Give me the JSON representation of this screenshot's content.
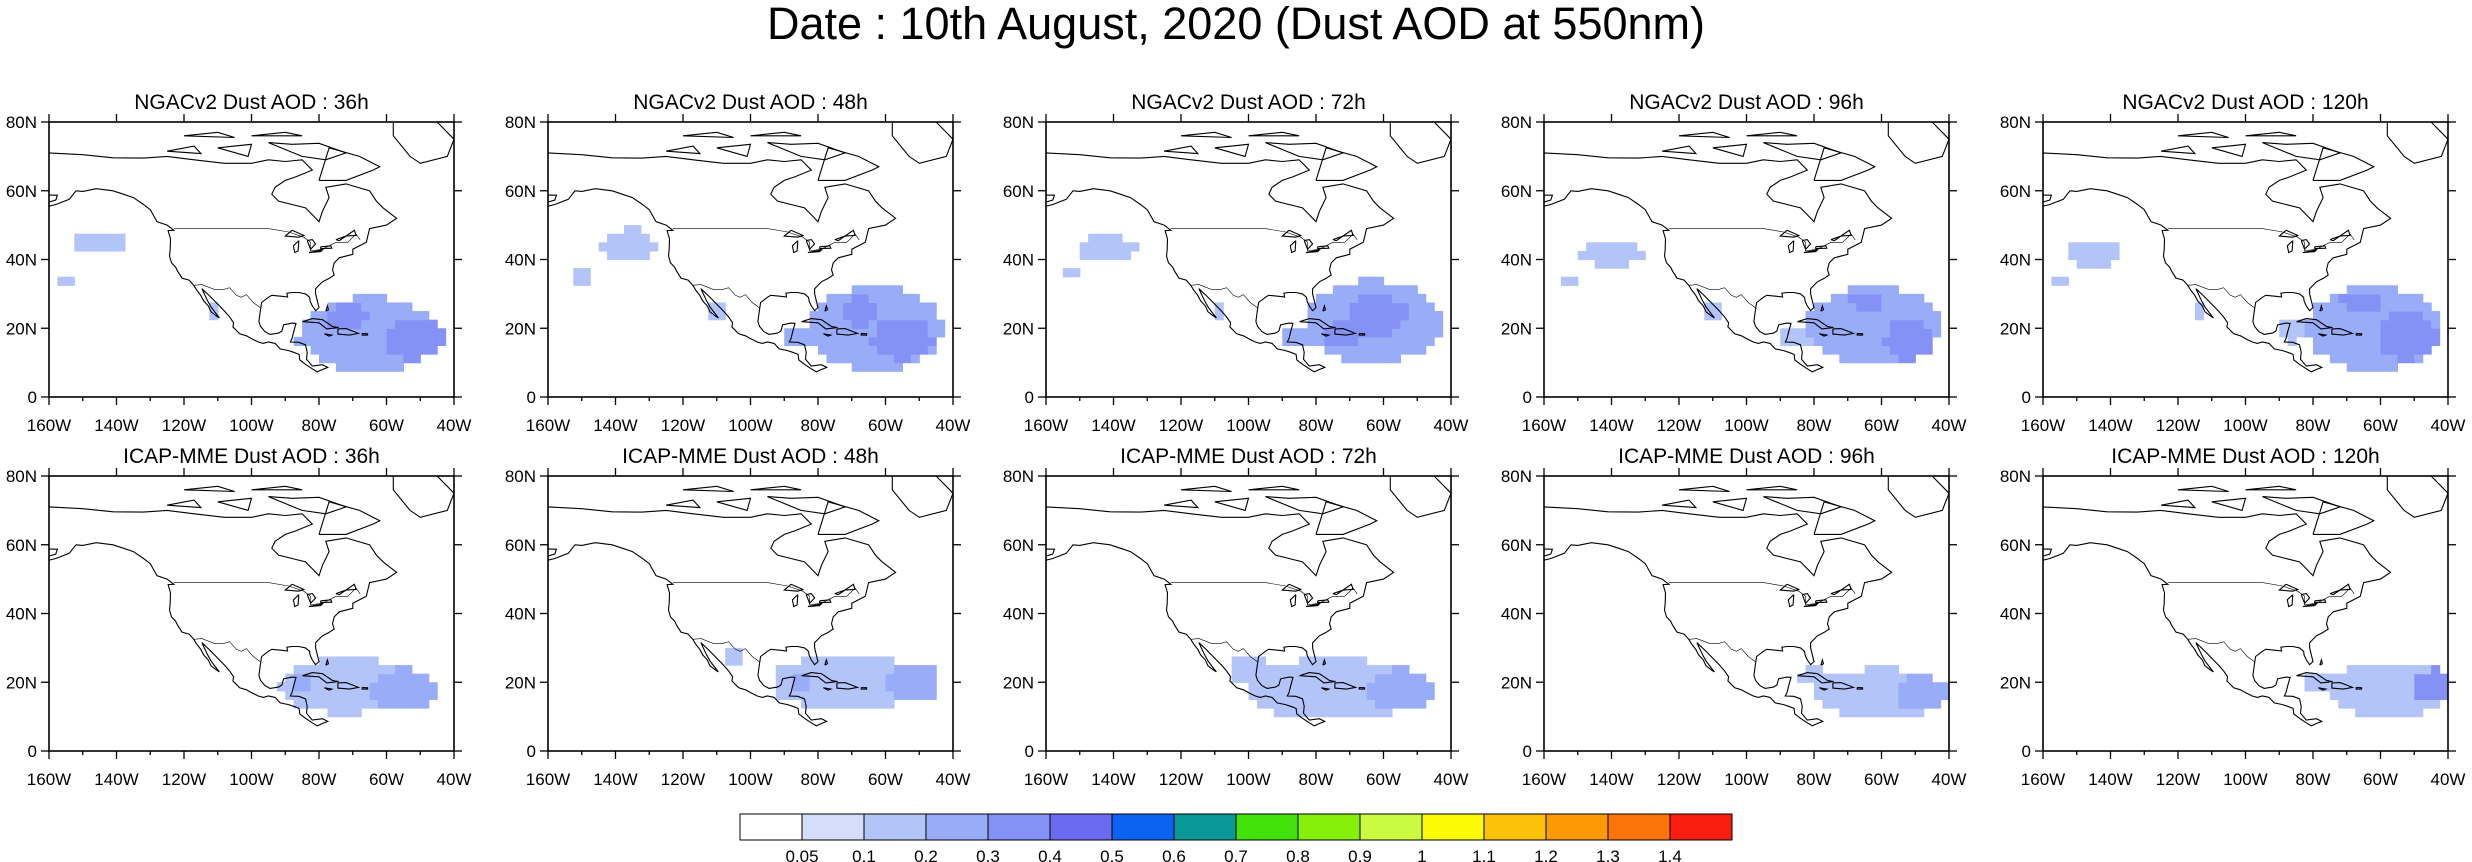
{
  "figure": {
    "title": "Date : 10th August, 2020 (Dust AOD at 550nm)"
  },
  "chart_data": {
    "type": "heatmap",
    "variable": "Dust AOD at 550nm",
    "axes": {
      "x": {
        "range": [
          -160,
          -40
        ],
        "ticks": [
          -160,
          -140,
          -120,
          -100,
          -80,
          -60,
          -40
        ],
        "tick_labels": [
          "160W",
          "140W",
          "120W",
          "100W",
          "80W",
          "60W",
          "40W"
        ]
      },
      "y": {
        "range": [
          0,
          80
        ],
        "ticks": [
          0,
          20,
          40,
          60,
          80
        ],
        "tick_labels": [
          "0",
          "20N",
          "40N",
          "60N",
          "80N"
        ]
      }
    },
    "colorbar": {
      "levels": [
        "0.05",
        "0.1",
        "0.2",
        "0.3",
        "0.4",
        "0.5",
        "0.6",
        "0.7",
        "0.8",
        "0.9",
        "1",
        "1.1",
        "1.2",
        "1.3",
        "1.4"
      ],
      "colors": [
        "#ffffff",
        "#d4defa",
        "#b2c4f8",
        "#99acf7",
        "#8591f5",
        "#6b6bf2",
        "#0b63f2",
        "#0a9898",
        "#43e10a",
        "#86f00b",
        "#cbfb40",
        "#fcfb05",
        "#fbc106",
        "#fb9a05",
        "#fa7408",
        "#fa1e10"
      ]
    },
    "panels": [
      {
        "row": 0,
        "col": 0,
        "title": "NGACv2 Dust AOD : 36h",
        "blobs": [
          {
            "lon": -65,
            "lat": 18,
            "rlon": 20,
            "rlat": 11,
            "v": 0.2
          },
          {
            "lon": -52,
            "lat": 17,
            "rlon": 9,
            "rlat": 6,
            "v": 0.3
          },
          {
            "lon": -72,
            "lat": 23,
            "rlon": 6,
            "rlat": 4,
            "v": 0.3
          },
          {
            "lon": -82,
            "lat": 17,
            "rlon": 5,
            "rlat": 3,
            "v": 0.2
          },
          {
            "lon": -145,
            "lat": 45,
            "rlon": 9,
            "rlat": 3,
            "v": 0.1
          },
          {
            "lon": -155,
            "lat": 34,
            "rlon": 3,
            "rlat": 2,
            "v": 0.1
          },
          {
            "lon": -111,
            "lat": 25,
            "rlon": 2,
            "rlat": 2,
            "v": 0.1
          }
        ]
      },
      {
        "row": 0,
        "col": 1,
        "title": "NGACv2 Dust AOD : 48h",
        "blobs": [
          {
            "lon": -63,
            "lat": 20,
            "rlon": 20,
            "rlat": 12,
            "v": 0.2
          },
          {
            "lon": -55,
            "lat": 17,
            "rlon": 9,
            "rlat": 6,
            "v": 0.3
          },
          {
            "lon": -68,
            "lat": 25,
            "rlon": 6,
            "rlat": 4,
            "v": 0.3
          },
          {
            "lon": -85,
            "lat": 17,
            "rlon": 5,
            "rlat": 3,
            "v": 0.2
          },
          {
            "lon": -136,
            "lat": 44,
            "rlon": 8,
            "rlat": 5,
            "v": 0.1
          },
          {
            "lon": -150,
            "lat": 35,
            "rlon": 3,
            "rlat": 2,
            "v": 0.1
          },
          {
            "lon": -110,
            "lat": 25,
            "rlon": 2,
            "rlat": 2,
            "v": 0.1
          }
        ]
      },
      {
        "row": 0,
        "col": 2,
        "title": "NGACv2 Dust AOD : 72h",
        "blobs": [
          {
            "lon": -63,
            "lat": 22,
            "rlon": 20,
            "rlat": 12,
            "v": 0.2
          },
          {
            "lon": -62,
            "lat": 24,
            "rlon": 9,
            "rlat": 6,
            "v": 0.3
          },
          {
            "lon": -72,
            "lat": 18,
            "rlon": 6,
            "rlat": 4,
            "v": 0.3
          },
          {
            "lon": -85,
            "lat": 17,
            "rlon": 5,
            "rlat": 3,
            "v": 0.2
          },
          {
            "lon": -142,
            "lat": 43,
            "rlon": 9,
            "rlat": 4,
            "v": 0.1
          },
          {
            "lon": -152,
            "lat": 36,
            "rlon": 3,
            "rlat": 2,
            "v": 0.1
          },
          {
            "lon": -108,
            "lat": 25,
            "rlon": 2,
            "rlat": 2,
            "v": 0.1
          }
        ]
      },
      {
        "row": 0,
        "col": 3,
        "title": "NGACv2 Dust AOD : 96h",
        "blobs": [
          {
            "lon": -62,
            "lat": 21,
            "rlon": 20,
            "rlat": 11,
            "v": 0.2
          },
          {
            "lon": -52,
            "lat": 17,
            "rlon": 7,
            "rlat": 6,
            "v": 0.3
          },
          {
            "lon": -64,
            "lat": 28,
            "rlon": 5,
            "rlat": 3,
            "v": 0.3
          },
          {
            "lon": -85,
            "lat": 17,
            "rlon": 5,
            "rlat": 3,
            "v": 0.1
          },
          {
            "lon": -140,
            "lat": 42,
            "rlon": 9,
            "rlat": 4,
            "v": 0.1
          },
          {
            "lon": -152,
            "lat": 34,
            "rlon": 3,
            "rlat": 2,
            "v": 0.1
          },
          {
            "lon": -110,
            "lat": 25,
            "rlon": 2,
            "rlat": 2,
            "v": 0.1
          }
        ]
      },
      {
        "row": 0,
        "col": 4,
        "title": "NGACv2 Dust AOD : 120h",
        "blobs": [
          {
            "lon": -62,
            "lat": 20,
            "rlon": 20,
            "rlat": 12,
            "v": 0.2
          },
          {
            "lon": -52,
            "lat": 18,
            "rlon": 9,
            "rlat": 7,
            "v": 0.3
          },
          {
            "lon": -66,
            "lat": 28,
            "rlon": 6,
            "rlat": 3,
            "v": 0.3
          },
          {
            "lon": -86,
            "lat": 19,
            "rlon": 5,
            "rlat": 3,
            "v": 0.1
          },
          {
            "lon": -145,
            "lat": 42,
            "rlon": 8,
            "rlat": 4,
            "v": 0.1
          },
          {
            "lon": -155,
            "lat": 34,
            "rlon": 3,
            "rlat": 2,
            "v": 0.1
          },
          {
            "lon": -113,
            "lat": 25,
            "rlon": 2,
            "rlat": 2,
            "v": 0.1
          }
        ]
      },
      {
        "row": 1,
        "col": 0,
        "title": "ICAP-MME Dust AOD : 36h",
        "blobs": [
          {
            "lon": -72,
            "lat": 19,
            "rlon": 20,
            "rlat": 8,
            "v": 0.1
          },
          {
            "lon": -55,
            "lat": 18,
            "rlon": 10,
            "rlat": 6,
            "v": 0.2
          },
          {
            "lon": -85,
            "lat": 20,
            "rlon": 4,
            "rlat": 3,
            "v": 0.2
          },
          {
            "lon": -88,
            "lat": 30,
            "rlon": 1,
            "rlat": 1,
            "v": 0.1
          }
        ]
      },
      {
        "row": 1,
        "col": 1,
        "title": "ICAP-MME Dust AOD : 48h",
        "blobs": [
          {
            "lon": -72,
            "lat": 20,
            "rlon": 22,
            "rlat": 8,
            "v": 0.1
          },
          {
            "lon": -52,
            "lat": 20,
            "rlon": 8,
            "rlat": 6,
            "v": 0.2
          },
          {
            "lon": -105,
            "lat": 27,
            "rlon": 3,
            "rlat": 3,
            "v": 0.1
          },
          {
            "lon": -85,
            "lat": 20,
            "rlon": 4,
            "rlat": 3,
            "v": 0.2
          }
        ]
      },
      {
        "row": 1,
        "col": 2,
        "title": "ICAP-MME Dust AOD : 72h",
        "blobs": [
          {
            "lon": -75,
            "lat": 18,
            "rlon": 25,
            "rlat": 9,
            "v": 0.1
          },
          {
            "lon": -55,
            "lat": 18,
            "rlon": 10,
            "rlat": 6,
            "v": 0.2
          },
          {
            "lon": -100,
            "lat": 24,
            "rlon": 6,
            "rlat": 4,
            "v": 0.1
          }
        ]
      },
      {
        "row": 1,
        "col": 3,
        "title": "ICAP-MME Dust AOD : 96h",
        "blobs": [
          {
            "lon": -60,
            "lat": 17,
            "rlon": 20,
            "rlat": 7,
            "v": 0.1
          },
          {
            "lon": -48,
            "lat": 17,
            "rlon": 8,
            "rlat": 5,
            "v": 0.2
          },
          {
            "lon": -80,
            "lat": 22,
            "rlon": 4,
            "rlat": 3,
            "v": 0.1
          }
        ]
      },
      {
        "row": 1,
        "col": 4,
        "title": "ICAP-MME Dust AOD : 120h",
        "blobs": [
          {
            "lon": -57,
            "lat": 18,
            "rlon": 18,
            "rlat": 8,
            "v": 0.1
          },
          {
            "lon": -44,
            "lat": 19,
            "rlon": 6,
            "rlat": 5,
            "v": 0.3
          },
          {
            "lon": -78,
            "lat": 20,
            "rlon": 5,
            "rlat": 3,
            "v": 0.1
          }
        ]
      }
    ]
  }
}
